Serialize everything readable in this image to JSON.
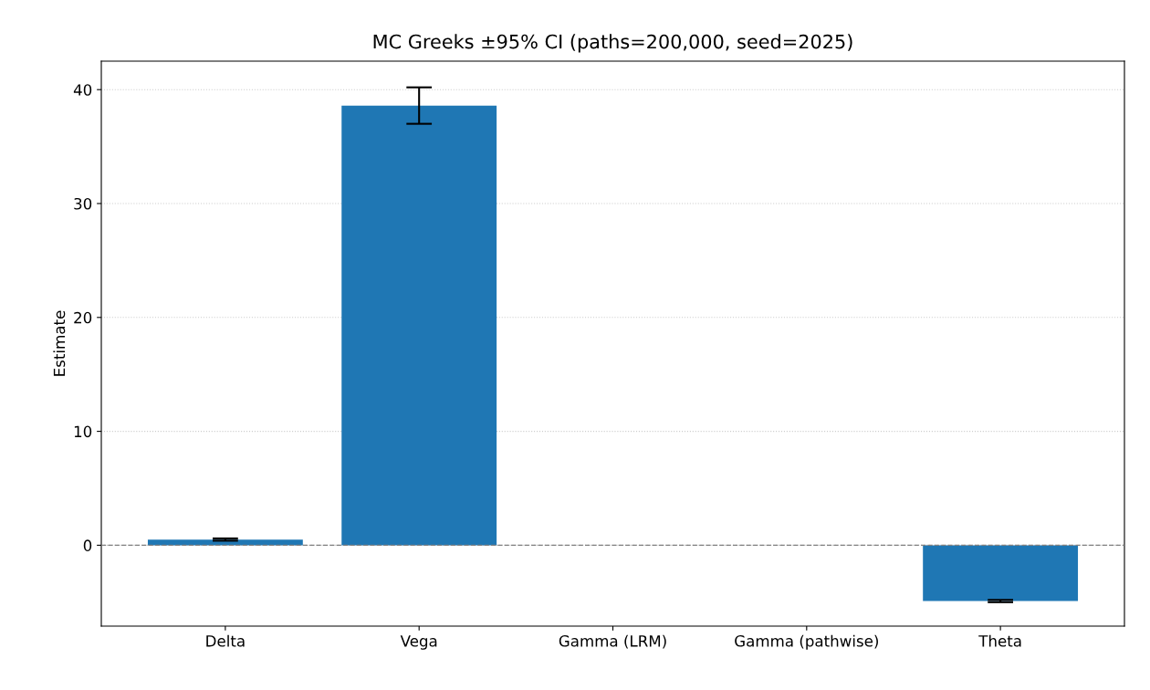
{
  "chart_data": {
    "type": "bar",
    "title": "MC Greeks ±95% CI (paths=200,000, seed=2025)",
    "ylabel": "Estimate",
    "categories": [
      "Delta",
      "Vega",
      "Gamma (LRM)",
      "Gamma (pathwise)",
      "Theta"
    ],
    "values": [
      0.5,
      38.6,
      null,
      null,
      -4.9
    ],
    "errors": [
      0.1,
      1.6,
      null,
      null,
      0.1
    ],
    "color": "#1f77b4",
    "ylim": [
      -7.1,
      42.5
    ],
    "yticks": [
      0,
      10,
      20,
      30,
      40
    ],
    "grid": "y",
    "ref_lines": [
      {
        "axis": "y",
        "value": 0,
        "label": null,
        "color": "#808080",
        "line_style": "dashed"
      }
    ]
  }
}
